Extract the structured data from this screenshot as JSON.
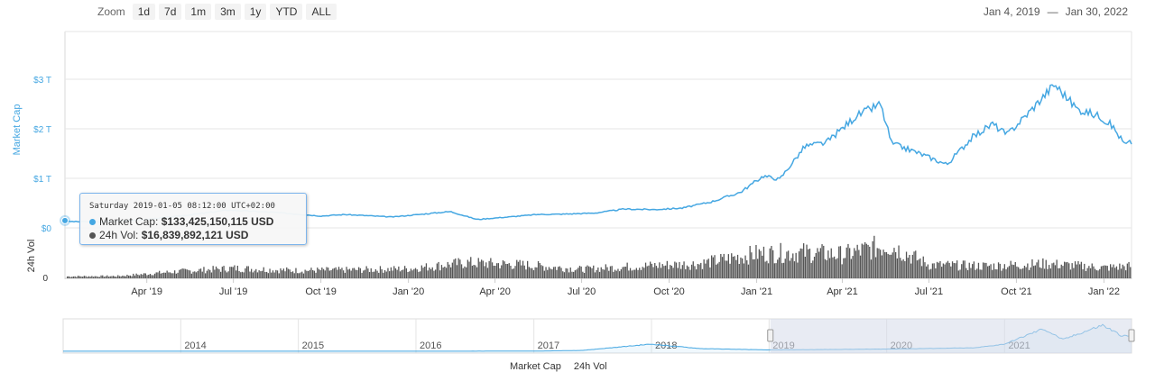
{
  "zoom": {
    "label": "Zoom",
    "buttons": [
      "1d",
      "7d",
      "1m",
      "3m",
      "1y",
      "YTD",
      "ALL"
    ]
  },
  "range": {
    "from": "Jan 4, 2019",
    "separator": "—",
    "to": "Jan 30, 2022"
  },
  "tooltip": {
    "date": "Saturday 2019-01-05 08:12:00 UTC+02:00",
    "market_cap_label": "Market Cap:",
    "market_cap_value": "$133,425,150,115 USD",
    "volume_label": "24h Vol:",
    "volume_value": "$16,839,892,121 USD"
  },
  "legend": {
    "market_cap": "Market Cap",
    "volume": "24h Vol"
  },
  "colors": {
    "market_cap": "#45a7e2",
    "volume": "#555555",
    "navigator_mask": "#d5dbe9"
  },
  "chart_data": [
    {
      "type": "line",
      "title": "",
      "ylabel": "Market Cap",
      "ylim": [
        0,
        3.3
      ],
      "yunit": "T USD",
      "yticks": [
        "$0",
        "$1 T",
        "$2 T",
        "$3 T"
      ],
      "xticks": [
        "Apr '19",
        "Jul '19",
        "Oct '19",
        "Jan '20",
        "Apr '20",
        "Jul '20",
        "Oct '20",
        "Jan '21",
        "Apr '21",
        "Jul '21",
        "Oct '21",
        "Jan '22"
      ],
      "series": [
        {
          "name": "Market Cap",
          "x": [
            "2019-01-05",
            "2019-02-15",
            "2019-04-01",
            "2019-05-15",
            "2019-06-26",
            "2019-08-15",
            "2019-10-01",
            "2019-10-26",
            "2019-12-15",
            "2020-02-14",
            "2020-03-13",
            "2020-04-15",
            "2020-05-15",
            "2020-06-15",
            "2020-07-15",
            "2020-08-15",
            "2020-09-15",
            "2020-10-15",
            "2020-11-15",
            "2020-12-15",
            "2021-01-08",
            "2021-01-25",
            "2021-02-21",
            "2021-03-15",
            "2021-04-15",
            "2021-05-11",
            "2021-05-23",
            "2021-06-15",
            "2021-07-20",
            "2021-08-15",
            "2021-09-06",
            "2021-09-21",
            "2021-10-15",
            "2021-11-10",
            "2021-12-04",
            "2021-12-28",
            "2022-01-10",
            "2022-01-23",
            "2022-01-30"
          ],
          "values": [
            0.13,
            0.12,
            0.17,
            0.26,
            0.36,
            0.31,
            0.24,
            0.27,
            0.22,
            0.33,
            0.17,
            0.22,
            0.27,
            0.28,
            0.3,
            0.38,
            0.37,
            0.4,
            0.53,
            0.72,
            1.05,
            0.98,
            1.65,
            1.72,
            2.25,
            2.5,
            1.7,
            1.55,
            1.28,
            1.82,
            2.1,
            1.88,
            2.35,
            2.9,
            2.4,
            2.25,
            2.05,
            1.68,
            1.73
          ]
        }
      ]
    },
    {
      "type": "bar",
      "title": "",
      "ylabel": "24h Vol",
      "yticks": [
        "0"
      ],
      "ylim": [
        0,
        350
      ],
      "yunit": "B USD",
      "series": [
        {
          "name": "24h Vol",
          "x": [
            "2019-01-05",
            "2019-03-01",
            "2019-05-01",
            "2019-07-01",
            "2019-09-01",
            "2019-11-01",
            "2020-01-01",
            "2020-03-01",
            "2020-05-01",
            "2020-07-01",
            "2020-09-01",
            "2020-11-01",
            "2021-01-01",
            "2021-02-21",
            "2021-04-01",
            "2021-05-19",
            "2021-07-01",
            "2021-09-01",
            "2021-11-01",
            "2022-01-01",
            "2022-01-30"
          ],
          "values": [
            17,
            20,
            60,
            90,
            70,
            75,
            85,
            140,
            120,
            80,
            110,
            130,
            220,
            230,
            210,
            300,
            120,
            110,
            130,
            95,
            110
          ]
        }
      ]
    },
    {
      "type": "area",
      "title": "",
      "role": "navigator",
      "xticks": [
        "2014",
        "2015",
        "2016",
        "2017",
        "2018",
        "2019",
        "2020",
        "2021"
      ],
      "series": [
        {
          "x": [
            "2013",
            "2014",
            "2015",
            "2016",
            "2017",
            "2017-06",
            "2018-01",
            "2018-06",
            "2019",
            "2020",
            "2020-10",
            "2021",
            "2021-05",
            "2021-07",
            "2021-11",
            "2022-01"
          ],
          "values": [
            0.01,
            0.01,
            0.01,
            0.01,
            0.02,
            0.1,
            0.8,
            0.3,
            0.15,
            0.25,
            0.38,
            0.8,
            2.5,
            1.3,
            2.9,
            1.7
          ]
        }
      ]
    }
  ]
}
